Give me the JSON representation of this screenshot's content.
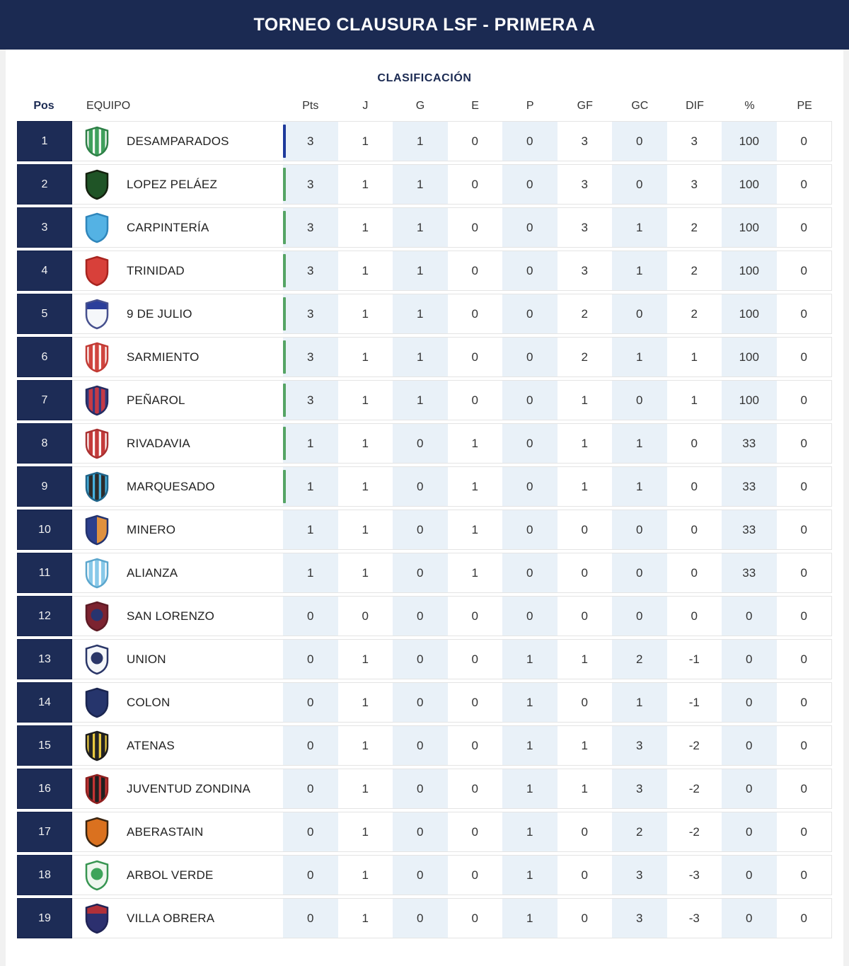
{
  "header": {
    "title": "TORNEO CLAUSURA LSF - PRIMERA A"
  },
  "subtitle": "CLASIFICACIÓN",
  "columns": {
    "pos": "Pos",
    "team": "EQUIPO",
    "stats": [
      "Pts",
      "J",
      "G",
      "E",
      "P",
      "GF",
      "GC",
      "DIF",
      "%",
      "PE"
    ]
  },
  "colors": {
    "page_bg": "#f1f1f1",
    "header_bg": "#1b2a52",
    "pos_bg": "#1d2c56",
    "pos_border": "#13214a",
    "tint": "#e9f1f8",
    "row_border": "#e4e4e4",
    "bar_blue": "#1e3a9c",
    "bar_green": "#55a465"
  },
  "rows": [
    {
      "pos": "1",
      "team": "DESAMPARADOS",
      "bar": "blue",
      "logo": {
        "style": "stripes",
        "c1": "#f2f8f2",
        "c2": "#3fa05c",
        "edge": "#2e8047"
      },
      "stats": [
        "3",
        "1",
        "1",
        "0",
        "0",
        "3",
        "0",
        "3",
        "100",
        "0"
      ]
    },
    {
      "pos": "2",
      "team": "LOPEZ PELÁEZ",
      "bar": "green",
      "logo": {
        "style": "solid",
        "c1": "#1f5426",
        "c2": "#1f5426",
        "edge": "#15220f"
      },
      "stats": [
        "3",
        "1",
        "1",
        "0",
        "0",
        "3",
        "0",
        "3",
        "100",
        "0"
      ]
    },
    {
      "pos": "3",
      "team": "CARPINTERÍA",
      "bar": "green",
      "logo": {
        "style": "solid",
        "c1": "#54b2e4",
        "c2": "#54b2e4",
        "edge": "#2f86bb"
      },
      "stats": [
        "3",
        "1",
        "1",
        "0",
        "0",
        "3",
        "1",
        "2",
        "100",
        "0"
      ]
    },
    {
      "pos": "4",
      "team": "TRINIDAD",
      "bar": "green",
      "logo": {
        "style": "solid",
        "c1": "#d8403a",
        "c2": "#d8403a",
        "edge": "#a8241f"
      },
      "stats": [
        "3",
        "1",
        "1",
        "0",
        "0",
        "3",
        "1",
        "2",
        "100",
        "0"
      ]
    },
    {
      "pos": "5",
      "team": "9 DE JULIO",
      "bar": "green",
      "logo": {
        "style": "chief",
        "c1": "#f5f7fa",
        "c2": "#2c3f9b",
        "edge": "#46508e"
      },
      "stats": [
        "3",
        "1",
        "1",
        "0",
        "0",
        "2",
        "0",
        "2",
        "100",
        "0"
      ]
    },
    {
      "pos": "6",
      "team": "SARMIENTO",
      "bar": "green",
      "logo": {
        "style": "stripes",
        "c1": "#fdf6f4",
        "c2": "#d0453f",
        "edge": "#c23a34"
      },
      "stats": [
        "3",
        "1",
        "1",
        "0",
        "0",
        "2",
        "1",
        "1",
        "100",
        "0"
      ]
    },
    {
      "pos": "7",
      "team": "PEÑAROL",
      "bar": "green",
      "logo": {
        "style": "stripes",
        "c1": "#303a80",
        "c2": "#c43a46",
        "edge": "#252c61"
      },
      "stats": [
        "3",
        "1",
        "1",
        "0",
        "0",
        "1",
        "0",
        "1",
        "100",
        "0"
      ]
    },
    {
      "pos": "8",
      "team": "RIVADAVIA",
      "bar": "green",
      "logo": {
        "style": "stripes",
        "c1": "#fdf5f5",
        "c2": "#c43b3b",
        "edge": "#a93131"
      },
      "stats": [
        "1",
        "1",
        "0",
        "1",
        "0",
        "1",
        "1",
        "0",
        "33",
        "0"
      ]
    },
    {
      "pos": "9",
      "team": "MARQUESADO",
      "bar": "green",
      "logo": {
        "style": "stripes",
        "c1": "#46b1de",
        "c2": "#2c2c2c",
        "edge": "#20658a"
      },
      "stats": [
        "1",
        "1",
        "0",
        "1",
        "0",
        "1",
        "1",
        "0",
        "33",
        "0"
      ]
    },
    {
      "pos": "10",
      "team": "MINERO",
      "bar": null,
      "logo": {
        "style": "half",
        "c1": "#2c3f8d",
        "c2": "#e0913f",
        "edge": "#23336f"
      },
      "stats": [
        "1",
        "1",
        "0",
        "1",
        "0",
        "0",
        "0",
        "0",
        "33",
        "0"
      ]
    },
    {
      "pos": "11",
      "team": "ALIANZA",
      "bar": null,
      "logo": {
        "style": "stripes",
        "c1": "#ffffff",
        "c2": "#88c9e9",
        "edge": "#5ba6cd"
      },
      "stats": [
        "1",
        "1",
        "0",
        "1",
        "0",
        "0",
        "0",
        "0",
        "33",
        "0"
      ]
    },
    {
      "pos": "12",
      "team": "SAN LORENZO",
      "bar": null,
      "logo": {
        "style": "circle",
        "c1": "#7c2330",
        "c2": "#28346f",
        "edge": "#5e1b25"
      },
      "stats": [
        "0",
        "0",
        "0",
        "0",
        "0",
        "0",
        "0",
        "0",
        "0",
        "0"
      ]
    },
    {
      "pos": "13",
      "team": "UNION",
      "bar": null,
      "logo": {
        "style": "circle",
        "c1": "#f4f6f9",
        "c2": "#2a3668",
        "edge": "#2a3668"
      },
      "stats": [
        "0",
        "1",
        "0",
        "0",
        "1",
        "1",
        "2",
        "-1",
        "0",
        "0"
      ]
    },
    {
      "pos": "14",
      "team": "COLON",
      "bar": null,
      "logo": {
        "style": "solid",
        "c1": "#26356c",
        "c2": "#26356c",
        "edge": "#1b2651"
      },
      "stats": [
        "0",
        "1",
        "0",
        "0",
        "1",
        "0",
        "1",
        "-1",
        "0",
        "0"
      ]
    },
    {
      "pos": "15",
      "team": "ATENAS",
      "bar": null,
      "logo": {
        "style": "stripes",
        "c1": "#e9c93f",
        "c2": "#242424",
        "edge": "#1b1b1b"
      },
      "stats": [
        "0",
        "1",
        "0",
        "0",
        "1",
        "1",
        "3",
        "-2",
        "0",
        "0"
      ]
    },
    {
      "pos": "16",
      "team": "JUVENTUD ZONDINA",
      "bar": null,
      "logo": {
        "style": "stripes",
        "c1": "#c33434",
        "c2": "#202020",
        "edge": "#8f2020"
      },
      "stats": [
        "0",
        "1",
        "0",
        "0",
        "1",
        "1",
        "3",
        "-2",
        "0",
        "0"
      ]
    },
    {
      "pos": "17",
      "team": "ABERASTAIN",
      "bar": null,
      "logo": {
        "style": "solid",
        "c1": "#da711f",
        "c2": "#da711f",
        "edge": "#3b2511"
      },
      "stats": [
        "0",
        "1",
        "0",
        "0",
        "1",
        "0",
        "2",
        "-2",
        "0",
        "0"
      ]
    },
    {
      "pos": "18",
      "team": "ARBOL VERDE",
      "bar": null,
      "logo": {
        "style": "circle",
        "c1": "#eef6ee",
        "c2": "#3da45a",
        "edge": "#379551"
      },
      "stats": [
        "0",
        "1",
        "0",
        "0",
        "1",
        "0",
        "3",
        "-3",
        "0",
        "0"
      ]
    },
    {
      "pos": "19",
      "team": "VILLA OBRERA",
      "bar": null,
      "logo": {
        "style": "chief",
        "c1": "#2c306f",
        "c2": "#b13039",
        "edge": "#202456"
      },
      "stats": [
        "0",
        "1",
        "0",
        "0",
        "1",
        "0",
        "3",
        "-3",
        "0",
        "0"
      ]
    }
  ]
}
